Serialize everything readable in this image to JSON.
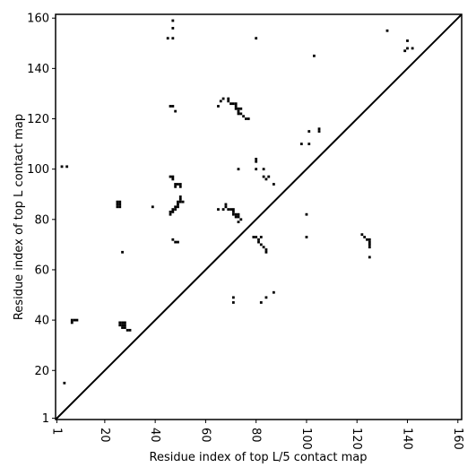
{
  "chart_data": {
    "type": "scatter",
    "xlabel": "Residue index of top L/5 contact map",
    "ylabel": "Residue index of top L contact map",
    "xlim": [
      0.5,
      161.5
    ],
    "ylim": [
      0.5,
      161.5
    ],
    "xticks": [
      1,
      20,
      40,
      60,
      80,
      100,
      120,
      140,
      160
    ],
    "yticks": [
      1,
      20,
      40,
      60,
      80,
      100,
      120,
      140,
      160
    ],
    "diagonal": true,
    "color": "#000000",
    "x": [
      45,
      47,
      80,
      47,
      47,
      25,
      26,
      25,
      26,
      25,
      26,
      39,
      27,
      7,
      7,
      8,
      9,
      26,
      27,
      28,
      26,
      27,
      28,
      27,
      28,
      29,
      30,
      4,
      3,
      5,
      46,
      47,
      47,
      48,
      49,
      50,
      50,
      48,
      46,
      46,
      47,
      47,
      48,
      48,
      49,
      49,
      49,
      50,
      50,
      51,
      50,
      47,
      48,
      49,
      46,
      47,
      48,
      65,
      66,
      67,
      69,
      69,
      70,
      71,
      72,
      72,
      72,
      73,
      73,
      74,
      74,
      75,
      76,
      77,
      73,
      65,
      67,
      68,
      68,
      69,
      70,
      71,
      71,
      72,
      71,
      72,
      73,
      73,
      73,
      74,
      73,
      80,
      80,
      80,
      83,
      83,
      84,
      85,
      87,
      79,
      80,
      81,
      81,
      82,
      82,
      83,
      84,
      84,
      71,
      71,
      82,
      84,
      87,
      100,
      100,
      98,
      101,
      101,
      105,
      105,
      103,
      132,
      140,
      139,
      140,
      142,
      122,
      123,
      124,
      125,
      125,
      125,
      125,
      125
    ],
    "y": [
      152,
      152,
      152,
      159,
      156,
      85,
      85,
      86,
      86,
      87,
      87,
      85,
      67,
      39,
      40,
      40,
      40,
      39,
      39,
      39,
      38,
      38,
      38,
      37,
      37,
      36,
      36,
      15,
      101,
      101,
      97,
      97,
      96,
      94,
      94,
      94,
      93,
      93,
      82,
      83,
      83,
      84,
      84,
      85,
      85,
      86,
      87,
      87,
      88,
      87,
      89,
      72,
      71,
      71,
      125,
      125,
      123,
      125,
      127,
      128,
      128,
      127,
      126,
      126,
      126,
      125,
      124,
      124,
      123,
      124,
      122,
      121,
      120,
      120,
      122,
      84,
      84,
      85,
      86,
      84,
      84,
      84,
      83,
      82,
      82,
      81,
      82,
      81,
      79,
      80,
      100,
      103,
      104,
      100,
      100,
      97,
      96,
      97,
      94,
      73,
      73,
      72,
      71,
      73,
      70,
      69,
      68,
      67,
      49,
      47,
      47,
      49,
      51,
      82,
      73,
      110,
      110,
      115,
      115,
      116,
      145,
      155,
      151,
      147,
      148,
      148,
      74,
      73,
      72,
      72,
      71,
      70,
      69,
      65
    ]
  }
}
